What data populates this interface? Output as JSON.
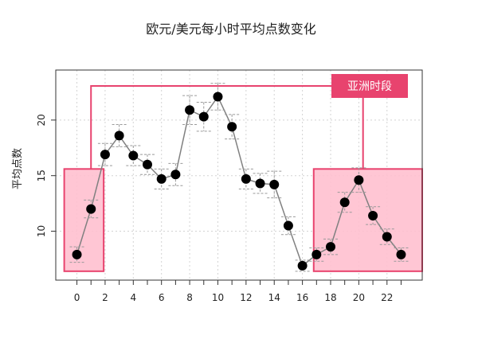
{
  "chart_data": {
    "type": "line",
    "title": "欧元/美元每小时平均点数变化",
    "xlabel": "",
    "ylabel": "平均点数",
    "x": [
      0,
      1,
      2,
      3,
      4,
      5,
      6,
      7,
      8,
      9,
      10,
      11,
      12,
      13,
      14,
      15,
      16,
      17,
      18,
      19,
      20,
      21,
      22,
      23
    ],
    "xticks": [
      0,
      2,
      4,
      6,
      8,
      10,
      12,
      14,
      16,
      18,
      20,
      22
    ],
    "yticks": [
      10,
      15,
      20
    ],
    "xlim": [
      -1.5,
      24.5
    ],
    "ylim": [
      5.6,
      24.5
    ],
    "grid": true,
    "series": [
      {
        "values": [
          7.9,
          12.0,
          16.9,
          18.6,
          16.8,
          16.0,
          14.7,
          15.1,
          20.9,
          20.3,
          22.1,
          19.4,
          14.7,
          14.3,
          14.2,
          10.5,
          6.9,
          7.9,
          8.6,
          12.6,
          14.6,
          11.4,
          9.5,
          7.9
        ],
        "error": [
          0.7,
          0.8,
          1.0,
          1.0,
          0.9,
          0.9,
          0.9,
          1.0,
          1.3,
          1.3,
          1.2,
          1.1,
          0.9,
          0.9,
          1.2,
          0.8,
          0.5,
          0.6,
          0.7,
          0.9,
          1.1,
          0.8,
          0.7,
          0.6
        ]
      }
    ],
    "annotations": [
      {
        "text": "亚洲时段",
        "color": "#e8436e",
        "ranges": [
          [
            -0.9,
            1.9
          ],
          [
            16.8,
            24.5
          ]
        ]
      }
    ],
    "colors": {
      "line": "#808080",
      "point": "#000000",
      "error": "#999999",
      "highlight_fill": "#ffc0cf",
      "highlight_stroke": "#e8436e",
      "grid": "#d3d3d3"
    }
  }
}
